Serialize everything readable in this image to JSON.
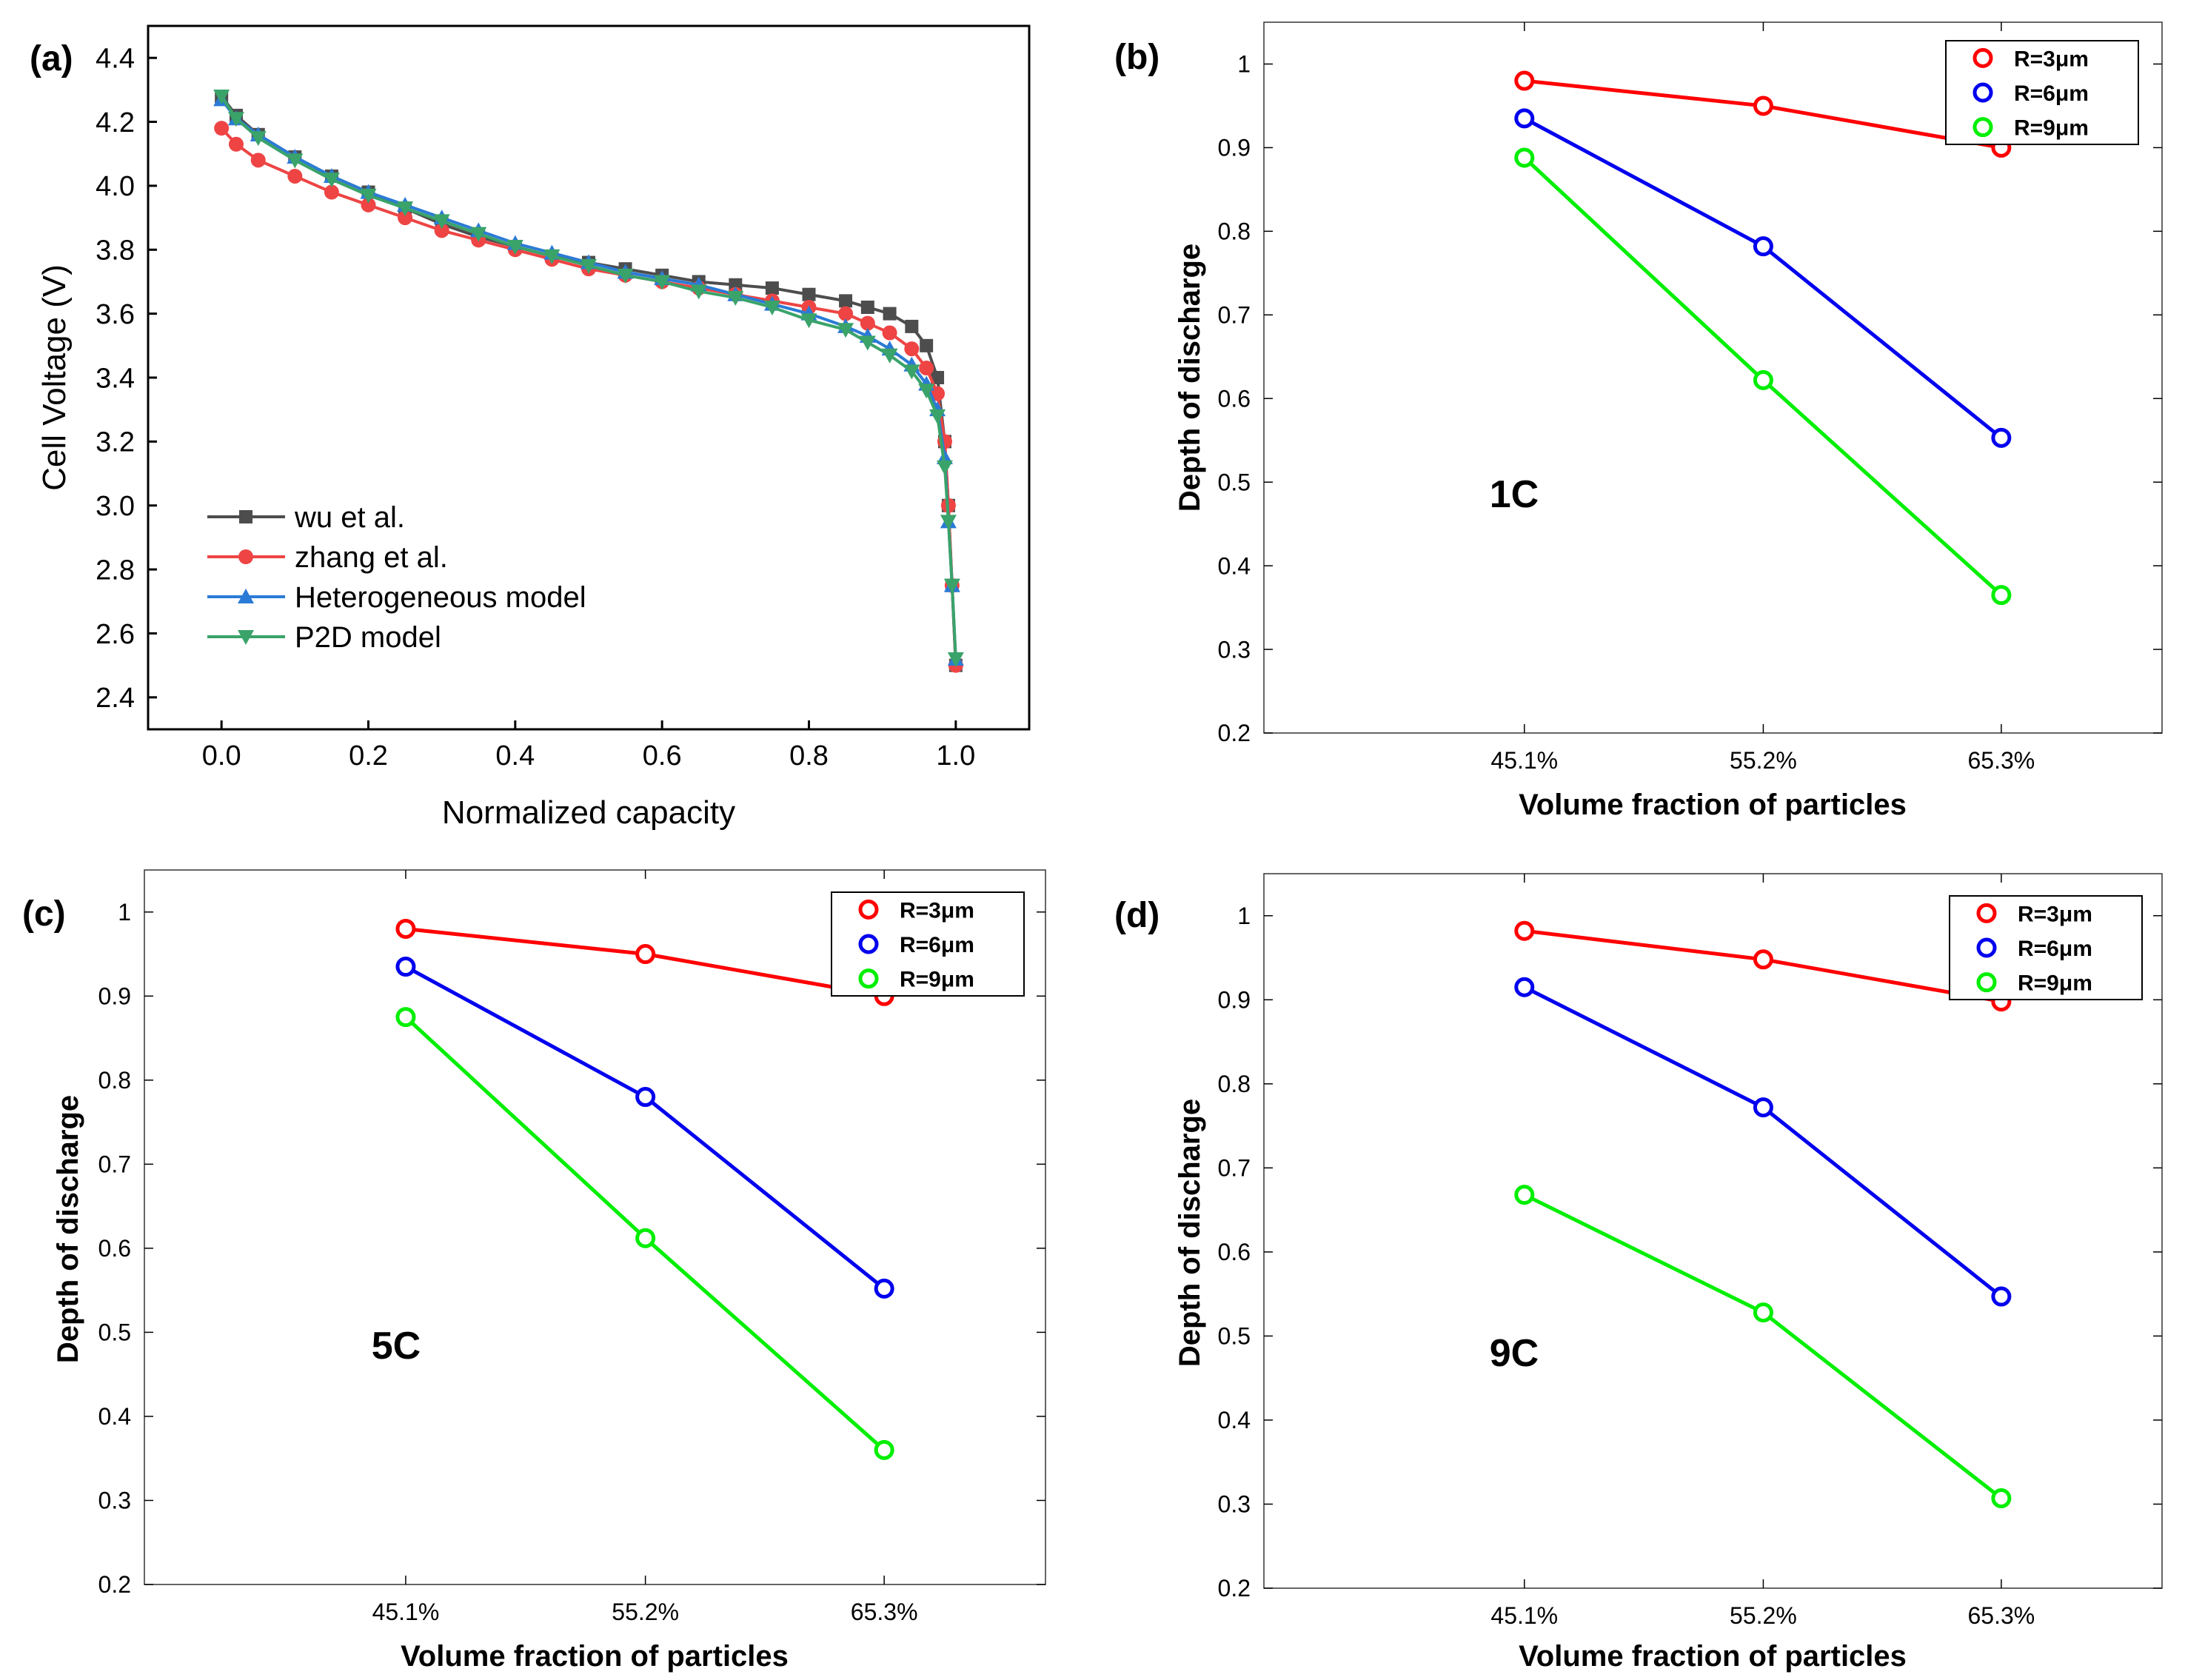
{
  "chart_data": [
    {
      "panel_label": "(a)",
      "type": "line",
      "title": "",
      "xlabel": "Normalized capacity",
      "ylabel": "Cell Voltage (V)",
      "xlim": [
        -0.1,
        1.1
      ],
      "ylim": [
        2.3,
        4.5
      ],
      "xticks": [
        0.0,
        0.2,
        0.4,
        0.6,
        0.8,
        1.0
      ],
      "xtick_labels": [
        "0.0",
        "0.2",
        "0.4",
        "0.6",
        "0.8",
        "1.0"
      ],
      "yticks": [
        2.4,
        2.6,
        2.8,
        3.0,
        3.2,
        3.4,
        3.6,
        3.8,
        4.0,
        4.2,
        4.4
      ],
      "ytick_labels": [
        "2.4",
        "2.6",
        "2.8",
        "3.0",
        "3.2",
        "3.4",
        "3.6",
        "3.8",
        "4.0",
        "4.2",
        "4.4"
      ],
      "legend_position": "bottom-left",
      "series": [
        {
          "name": "wu et al.",
          "color": "#4d4d4d",
          "marker": "square",
          "x": [
            0.0,
            0.02,
            0.05,
            0.1,
            0.15,
            0.2,
            0.25,
            0.3,
            0.35,
            0.4,
            0.45,
            0.5,
            0.55,
            0.6,
            0.65,
            0.7,
            0.75,
            0.8,
            0.85,
            0.88,
            0.91,
            0.94,
            0.96,
            0.975,
            0.985,
            0.99,
            0.995,
            1.0
          ],
          "y": [
            4.28,
            4.22,
            4.16,
            4.09,
            4.03,
            3.98,
            3.93,
            3.88,
            3.84,
            3.81,
            3.78,
            3.76,
            3.74,
            3.72,
            3.7,
            3.69,
            3.68,
            3.66,
            3.64,
            3.62,
            3.6,
            3.56,
            3.5,
            3.4,
            3.2,
            3.0,
            2.75,
            2.5
          ]
        },
        {
          "name": "zhang et al.",
          "color": "#ee4444",
          "marker": "circle",
          "x": [
            0.0,
            0.02,
            0.05,
            0.1,
            0.15,
            0.2,
            0.25,
            0.3,
            0.35,
            0.4,
            0.45,
            0.5,
            0.55,
            0.6,
            0.65,
            0.7,
            0.75,
            0.8,
            0.85,
            0.88,
            0.91,
            0.94,
            0.96,
            0.975,
            0.985,
            0.99,
            0.995,
            1.0
          ],
          "y": [
            4.18,
            4.13,
            4.08,
            4.03,
            3.98,
            3.94,
            3.9,
            3.86,
            3.83,
            3.8,
            3.77,
            3.74,
            3.72,
            3.7,
            3.68,
            3.66,
            3.64,
            3.62,
            3.6,
            3.57,
            3.54,
            3.49,
            3.43,
            3.35,
            3.2,
            3.0,
            2.75,
            2.5
          ]
        },
        {
          "name": "Heterogeneous model",
          "color": "#2b7bd6",
          "marker": "triangle-up",
          "x": [
            0.0,
            0.02,
            0.05,
            0.1,
            0.15,
            0.2,
            0.25,
            0.3,
            0.35,
            0.4,
            0.45,
            0.5,
            0.55,
            0.6,
            0.65,
            0.7,
            0.75,
            0.8,
            0.85,
            0.88,
            0.91,
            0.94,
            0.96,
            0.975,
            0.985,
            0.99,
            0.995,
            1.0
          ],
          "y": [
            4.27,
            4.21,
            4.16,
            4.09,
            4.03,
            3.98,
            3.94,
            3.9,
            3.86,
            3.82,
            3.79,
            3.76,
            3.73,
            3.71,
            3.69,
            3.66,
            3.63,
            3.6,
            3.56,
            3.53,
            3.49,
            3.44,
            3.38,
            3.3,
            3.15,
            2.95,
            2.75,
            2.52
          ]
        },
        {
          "name": "P2D model",
          "color": "#3aa36a",
          "marker": "triangle-down",
          "x": [
            0.0,
            0.02,
            0.05,
            0.1,
            0.15,
            0.2,
            0.25,
            0.3,
            0.35,
            0.4,
            0.45,
            0.5,
            0.55,
            0.6,
            0.65,
            0.7,
            0.75,
            0.8,
            0.85,
            0.88,
            0.91,
            0.94,
            0.96,
            0.975,
            0.985,
            0.99,
            0.995,
            1.0
          ],
          "y": [
            4.28,
            4.21,
            4.15,
            4.08,
            4.02,
            3.97,
            3.93,
            3.89,
            3.85,
            3.81,
            3.78,
            3.75,
            3.72,
            3.7,
            3.67,
            3.65,
            3.62,
            3.58,
            3.55,
            3.51,
            3.47,
            3.42,
            3.36,
            3.28,
            3.12,
            2.95,
            2.75,
            2.52
          ]
        }
      ]
    },
    {
      "panel_label": "(b)",
      "type": "line",
      "annotation": "1C",
      "xlabel": "Volume fraction of particles",
      "ylabel": "Depth of discharge",
      "categories": [
        "45.1%",
        "55.2%",
        "65.3%"
      ],
      "ylim": [
        0.2,
        1.05
      ],
      "yticks": [
        0.2,
        0.3,
        0.4,
        0.5,
        0.6,
        0.7,
        0.8,
        0.9,
        1.0
      ],
      "ytick_labels": [
        "0.2",
        "0.3",
        "0.4",
        "0.5",
        "0.6",
        "0.7",
        "0.8",
        "0.9",
        "1"
      ],
      "legend_position": "top-right",
      "series": [
        {
          "name": "R=3μm",
          "color": "#ff0000",
          "values": [
            0.98,
            0.95,
            0.9
          ]
        },
        {
          "name": "R=6μm",
          "color": "#0000ee",
          "values": [
            0.935,
            0.782,
            0.553
          ]
        },
        {
          "name": "R=9μm",
          "color": "#00ee00",
          "values": [
            0.888,
            0.622,
            0.365
          ]
        }
      ]
    },
    {
      "panel_label": "(c)",
      "type": "line",
      "annotation": "5C",
      "xlabel": "Volume fraction of particles",
      "ylabel": "Depth of discharge",
      "categories": [
        "45.1%",
        "55.2%",
        "65.3%"
      ],
      "ylim": [
        0.2,
        1.05
      ],
      "yticks": [
        0.2,
        0.3,
        0.4,
        0.5,
        0.6,
        0.7,
        0.8,
        0.9,
        1.0
      ],
      "ytick_labels": [
        "0.2",
        "0.3",
        "0.4",
        "0.5",
        "0.6",
        "0.7",
        "0.8",
        "0.9",
        "1"
      ],
      "legend_position": "top-right",
      "series": [
        {
          "name": "R=3μm",
          "color": "#ff0000",
          "values": [
            0.98,
            0.95,
            0.9
          ]
        },
        {
          "name": "R=6μm",
          "color": "#0000ee",
          "values": [
            0.935,
            0.78,
            0.552
          ]
        },
        {
          "name": "R=9μm",
          "color": "#00ee00",
          "values": [
            0.875,
            0.612,
            0.36
          ]
        }
      ]
    },
    {
      "panel_label": "(d)",
      "type": "line",
      "annotation": "9C",
      "xlabel": "Volume fraction of particles",
      "ylabel": "Depth of discharge",
      "categories": [
        "45.1%",
        "55.2%",
        "65.3%"
      ],
      "ylim": [
        0.2,
        1.05
      ],
      "yticks": [
        0.2,
        0.3,
        0.4,
        0.5,
        0.6,
        0.7,
        0.8,
        0.9,
        1.0
      ],
      "ytick_labels": [
        "0.2",
        "0.3",
        "0.4",
        "0.5",
        "0.6",
        "0.7",
        "0.8",
        "0.9",
        "1"
      ],
      "legend_position": "top-right",
      "series": [
        {
          "name": "R=3μm",
          "color": "#ff0000",
          "values": [
            0.982,
            0.948,
            0.898
          ]
        },
        {
          "name": "R=6μm",
          "color": "#0000ee",
          "values": [
            0.915,
            0.772,
            0.547
          ]
        },
        {
          "name": "R=9μm",
          "color": "#00ee00",
          "values": [
            0.668,
            0.528,
            0.307
          ]
        }
      ]
    }
  ]
}
